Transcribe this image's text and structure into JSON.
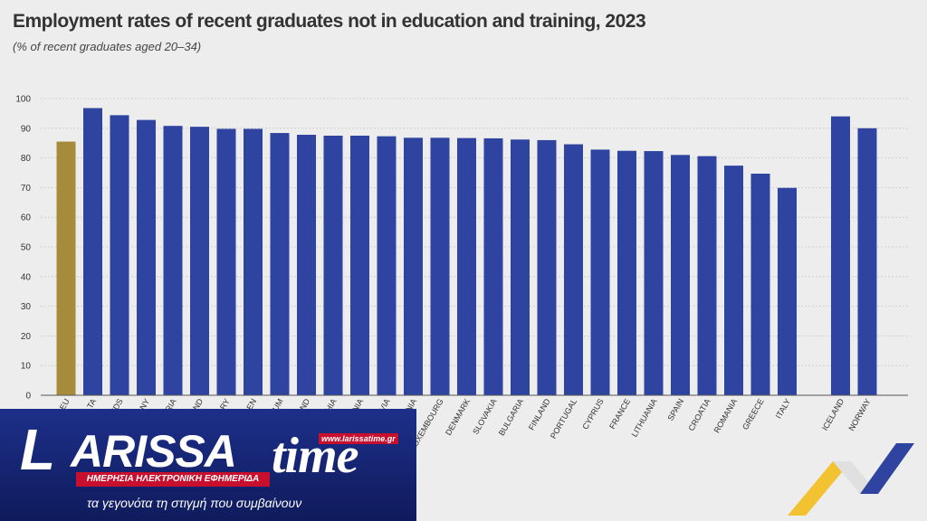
{
  "page": {
    "title": "Employment rates of recent graduates not in education and training, 2023",
    "subtitle": "(% of recent graduates aged 20–34)"
  },
  "chart_data": {
    "type": "bar",
    "title": "Employment rates of recent graduates not in education and training, 2023",
    "subtitle": "(% of recent graduates aged 20–34)",
    "xlabel": "",
    "ylabel": "",
    "ylim": [
      0,
      100
    ],
    "yticks": [
      0,
      10,
      20,
      30,
      40,
      50,
      60,
      70,
      80,
      90,
      100
    ],
    "grid": true,
    "categories": [
      "EU",
      "MALTA",
      "NETHERLANDS",
      "GERMANY",
      "AUSTRIA",
      "POLAND",
      "HUNGARY",
      "SWEDEN",
      "BELGIUM",
      "IRELAND",
      "CZECHIA",
      "SLOVENIA",
      "LATVIA",
      "ESTONIA",
      "LUXEMBOURG",
      "DENMARK",
      "SLOVAKIA",
      "BULGARIA",
      "FINLAND",
      "PORTUGAL",
      "CYPRUS",
      "FRANCE",
      "LITHUANIA",
      "SPAIN",
      "CROATIA",
      "ROMANIA",
      "GREECE",
      "ITALY",
      "",
      "ICELAND",
      "NORWAY"
    ],
    "visible_tick_labels": [
      "EU",
      "MALTA",
      "NDS",
      "MANY",
      "RIA",
      "AND",
      "ARY",
      "DEN",
      "IUM",
      "AND",
      "HIA",
      "NIA",
      "VIA",
      "ESTONIA",
      "LUXEMBOURG",
      "DENMARK",
      "SLOVAKIA",
      "BULGARIA",
      "FINLAND",
      "PORTUGAL",
      "CYPRUS",
      "FRANCE",
      "LITHUANIA",
      "SPAIN",
      "CROATIA",
      "ROMANIA",
      "GREECE",
      "ITALY",
      "",
      "ICELAND",
      "NORWAY"
    ],
    "values": [
      85.5,
      96.8,
      94.4,
      92.8,
      90.8,
      90.5,
      89.8,
      89.8,
      88.4,
      87.8,
      87.5,
      87.5,
      87.3,
      86.8,
      86.8,
      86.7,
      86.6,
      86.2,
      86.0,
      84.6,
      82.8,
      82.4,
      82.3,
      81.0,
      80.6,
      77.4,
      74.7,
      69.9,
      null,
      94.0,
      90.0
    ],
    "colors": {
      "eu": "#a68b3a",
      "countries": "#2e44a0",
      "grid": "#c8c8c8",
      "axis": "#555555",
      "text": "#333333"
    }
  },
  "banner": {
    "logo_letter": "L",
    "logo_word": "ARISSA",
    "logo_time": "time",
    "url": "www.larissatime.gr",
    "tagline": "ΗΜΕΡΗΣΙΑ ΗΛΕΚΤΡΟΝΙΚΗ ΕΦΗΜΕΡΙΔΑ",
    "slogan": "τα γεγονότα τη στιγμή που συμβαίνουν"
  }
}
